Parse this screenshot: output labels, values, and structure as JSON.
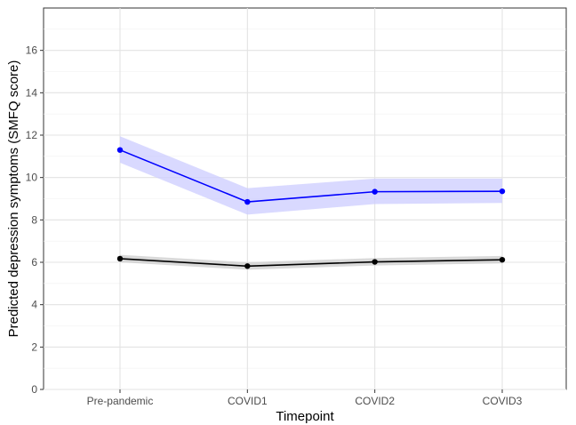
{
  "chart_data": {
    "type": "line",
    "xlabel": "Timepoint",
    "ylabel": "Predicted depression symptoms (SMFQ score)",
    "categories": [
      "Pre-pandemic",
      "COVID1",
      "COVID2",
      "COVID3"
    ],
    "ylim": [
      0,
      18
    ],
    "yticks": [
      0,
      2,
      4,
      6,
      8,
      10,
      12,
      14,
      16
    ],
    "grid": true,
    "series": [
      {
        "color": "#0000ff",
        "band_color": "#ccccff",
        "values": [
          11.3,
          8.85,
          9.33,
          9.35
        ],
        "lower": [
          10.7,
          8.25,
          8.75,
          8.8
        ],
        "upper": [
          11.95,
          9.5,
          9.95,
          9.95
        ]
      },
      {
        "color": "#000000",
        "band_color": "#cccccc",
        "values": [
          6.17,
          5.82,
          6.02,
          6.12
        ],
        "lower": [
          6.0,
          5.65,
          5.85,
          5.95
        ],
        "upper": [
          6.35,
          6.0,
          6.2,
          6.3
        ]
      }
    ]
  }
}
